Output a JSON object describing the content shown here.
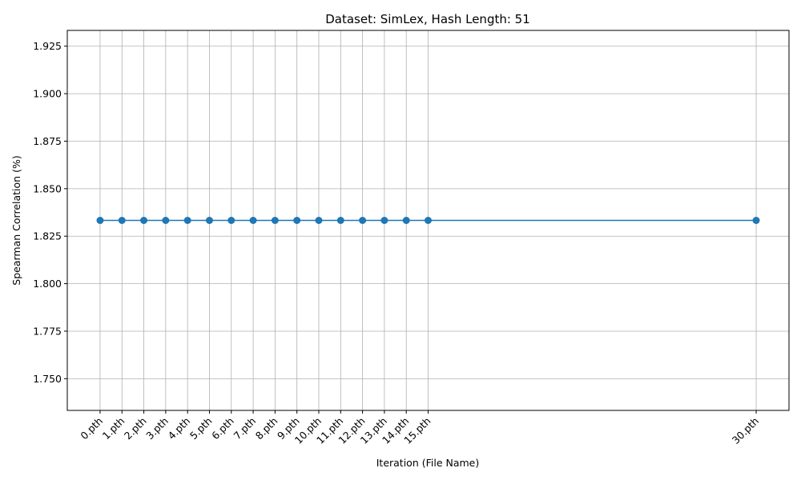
{
  "chart_data": {
    "type": "line",
    "title": "Dataset: SimLex, Hash Length: 51",
    "xlabel": "Iteration (File Name)",
    "ylabel": "Spearman Correlation (%)",
    "x_ticks": [
      "0.pth",
      "1.pth",
      "2.pth",
      "3.pth",
      "4.pth",
      "5.pth",
      "6.pth",
      "7.pth",
      "8.pth",
      "9.pth",
      "10.pth",
      "11.pth",
      "12.pth",
      "13.pth",
      "14.pth",
      "15.pth",
      "30.pth"
    ],
    "x": [
      0,
      1,
      2,
      3,
      4,
      5,
      6,
      7,
      8,
      9,
      10,
      11,
      12,
      13,
      14,
      15,
      30
    ],
    "series": [
      {
        "values": [
          1.8333,
          1.8333,
          1.8333,
          1.8333,
          1.8333,
          1.8333,
          1.8333,
          1.8333,
          1.8333,
          1.8333,
          1.8333,
          1.8333,
          1.8333,
          1.8333,
          1.8333,
          1.8333,
          1.8333
        ],
        "color": "#1f77b4",
        "marker": "circle"
      }
    ],
    "xlim": [
      -1.5,
      31.5
    ],
    "ylim": [
      1.7333,
      1.9333
    ],
    "y_ticks": [
      "1.750",
      "1.775",
      "1.800",
      "1.825",
      "1.850",
      "1.875",
      "1.900",
      "1.925"
    ],
    "grid": true
  }
}
